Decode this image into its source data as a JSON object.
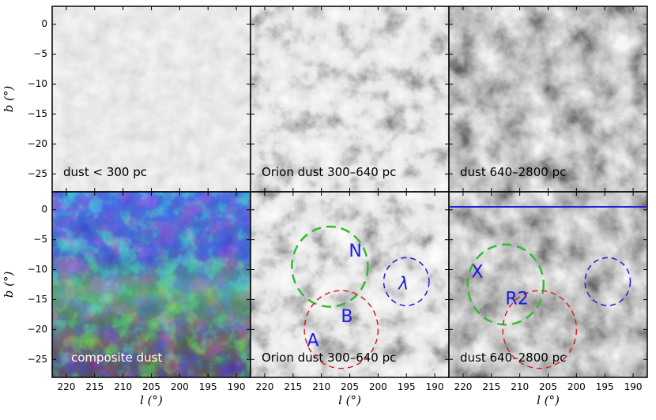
{
  "chart_data": {
    "type": "heatmap",
    "layout": "2x3 grid of sky maps",
    "x_axis": {
      "label": "l (°)",
      "range": [
        222.5,
        187.5
      ],
      "ticks": [
        220,
        215,
        210,
        205,
        200,
        195,
        190
      ],
      "tick_labels": [
        "220",
        "215",
        "210",
        "205",
        "200",
        "195",
        "190"
      ]
    },
    "y_axis": {
      "label": "b (°)",
      "range": [
        -28,
        3
      ],
      "ticks": [
        0,
        -5,
        -10,
        -15,
        -20,
        -25
      ],
      "tick_labels": [
        "0",
        "−5",
        "−10",
        "−15",
        "−20",
        "−25"
      ]
    },
    "panels": [
      {
        "id": "p1",
        "row": 0,
        "col": 0,
        "label": "dust < 300 pc",
        "colormap": "grayscale",
        "dust_level": "low"
      },
      {
        "id": "p2",
        "row": 0,
        "col": 1,
        "label": "Orion dust 300–640 pc",
        "colormap": "grayscale",
        "dust_level": "medium"
      },
      {
        "id": "p3",
        "row": 0,
        "col": 2,
        "label": "dust 640–2800 pc",
        "colormap": "grayscale",
        "dust_level": "high"
      },
      {
        "id": "p4",
        "row": 1,
        "col": 0,
        "label": "composite dust",
        "colormap": "rgb composite",
        "dust_level": "composite",
        "composite_channels": {
          "red": "dust < 300 pc",
          "green": "Orion dust 300–640 pc",
          "blue": "dust 640–2800 pc"
        }
      },
      {
        "id": "p5",
        "row": 1,
        "col": 1,
        "label": "Orion dust 300–640 pc",
        "colormap": "grayscale",
        "dust_level": "medium"
      },
      {
        "id": "p6",
        "row": 1,
        "col": 2,
        "label": "dust 640–2800 pc",
        "colormap": "grayscale",
        "dust_level": "high"
      }
    ],
    "circles": [
      {
        "panel": "p5",
        "l": 208.5,
        "b": -9.5,
        "r": 6.7,
        "color": "#33bb33",
        "dash": "long"
      },
      {
        "panel": "p5",
        "l": 206.5,
        "b": -20.0,
        "r": 6.5,
        "color": "#e02020",
        "dash": "medium"
      },
      {
        "panel": "p5",
        "l": 195.0,
        "b": -12.0,
        "r": 4.0,
        "color": "#2020e0",
        "dash": "medium"
      },
      {
        "panel": "p6",
        "l": 212.5,
        "b": -12.5,
        "r": 6.7,
        "color": "#33bb33",
        "dash": "long"
      },
      {
        "panel": "p6",
        "l": 206.5,
        "b": -20.0,
        "r": 6.5,
        "color": "#e02020",
        "dash": "medium"
      },
      {
        "panel": "p6",
        "l": 194.5,
        "b": -12.0,
        "r": 4.0,
        "color": "#2020e0",
        "dash": "medium"
      }
    ],
    "annotations": [
      {
        "panel": "p5",
        "text": "N",
        "l": 204.0,
        "b": -7.0
      },
      {
        "panel": "p5",
        "text": "λ",
        "l": 195.5,
        "b": -12.5
      },
      {
        "panel": "p5",
        "text": "B",
        "l": 205.5,
        "b": -18.0
      },
      {
        "panel": "p5",
        "text": "A",
        "l": 211.5,
        "b": -22.0
      },
      {
        "panel": "p6",
        "text": "X",
        "l": 217.5,
        "b": -10.5
      },
      {
        "panel": "p6",
        "text": "R2",
        "l": 210.5,
        "b": -15.0
      }
    ],
    "hlines": [
      {
        "panel": "p6",
        "b": 0.5,
        "color": "#2020e0"
      }
    ],
    "grid": false,
    "legend": "none"
  }
}
